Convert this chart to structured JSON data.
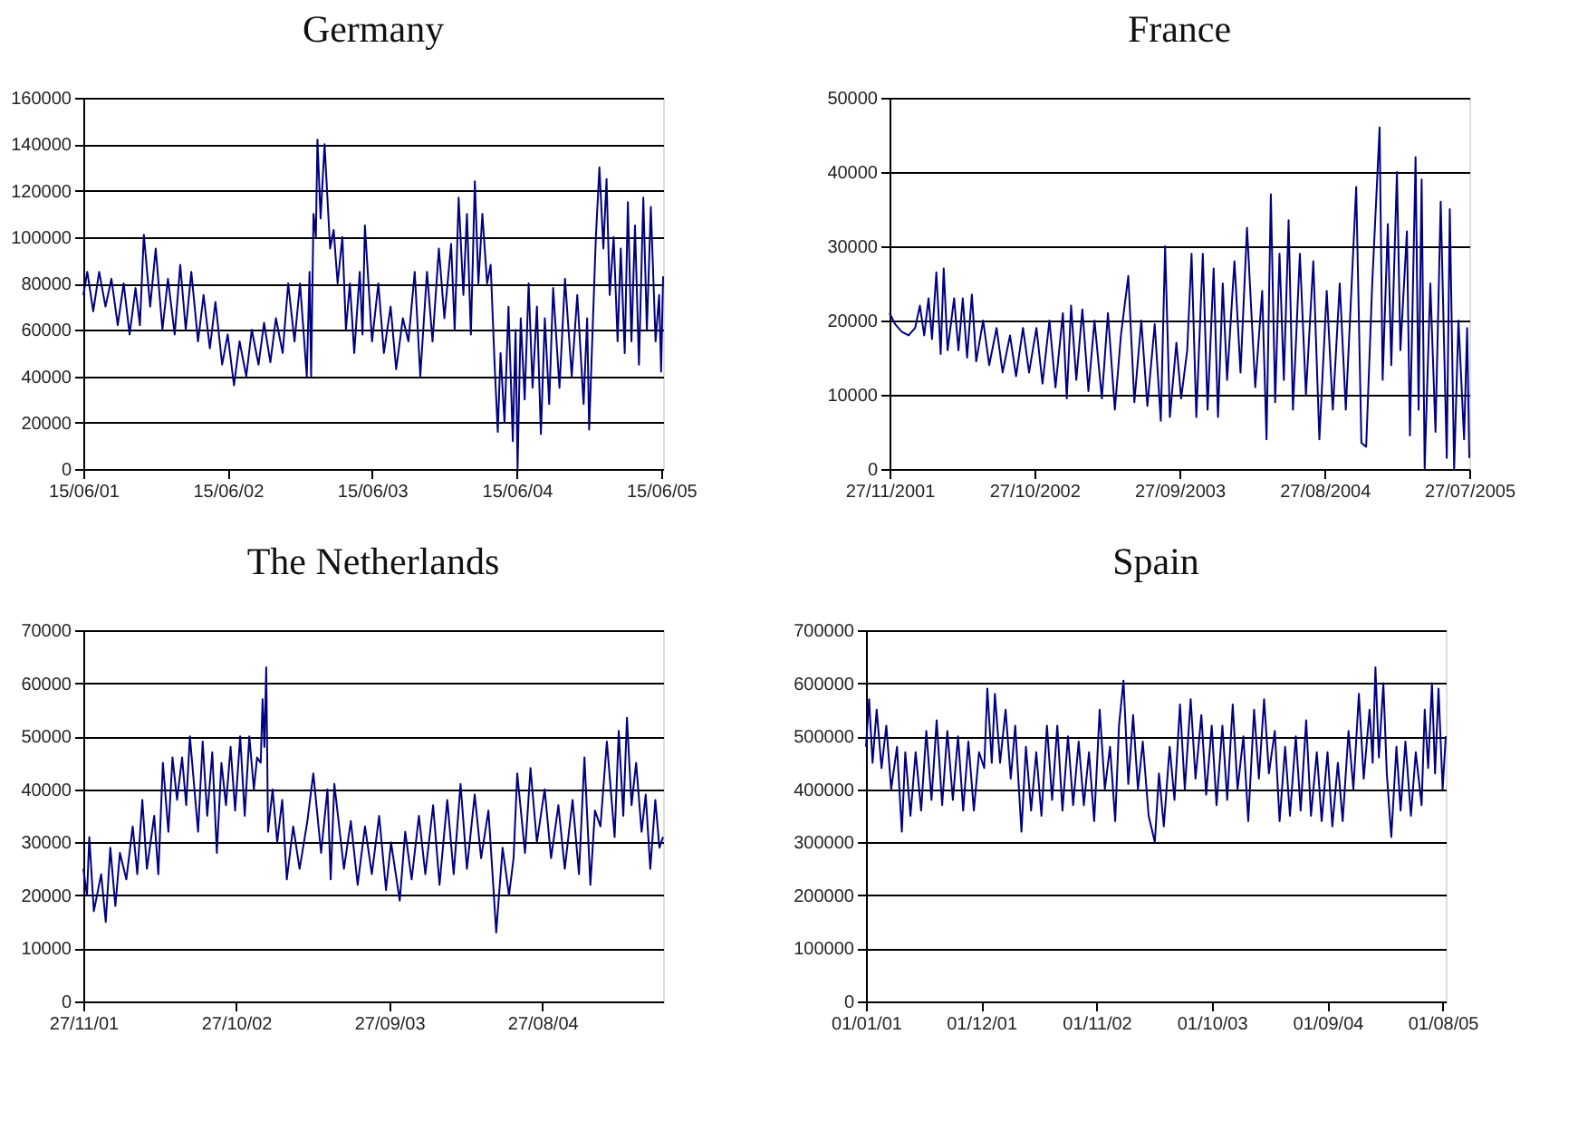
{
  "chart_data": [
    {
      "type": "line",
      "title": "Germany",
      "xlim": [
        "2001-06-15",
        "2005-06-20"
      ],
      "ylim": [
        0,
        160000
      ],
      "yticks": [
        0,
        20000,
        40000,
        60000,
        80000,
        100000,
        120000,
        140000,
        160000
      ],
      "grid": "y",
      "xticks": [
        {
          "value": "2001-06-15",
          "label": "15/06/01"
        },
        {
          "value": "2002-06-15",
          "label": "15/06/02"
        },
        {
          "value": "2003-06-15",
          "label": "15/06/03"
        },
        {
          "value": "2004-06-15",
          "label": "15/06/04"
        },
        {
          "value": "2005-06-15",
          "label": "15/06/05"
        }
      ],
      "x": [
        "2001-06-15",
        "2001-06-25",
        "2001-07-10",
        "2001-07-25",
        "2001-08-10",
        "2001-08-25",
        "2001-09-10",
        "2001-09-25",
        "2001-10-10",
        "2001-10-25",
        "2001-11-05",
        "2001-11-15",
        "2001-12-01",
        "2001-12-15",
        "2002-01-01",
        "2002-01-15",
        "2002-02-01",
        "2002-02-15",
        "2002-03-01",
        "2002-03-15",
        "2002-04-01",
        "2002-04-15",
        "2002-05-01",
        "2002-05-15",
        "2002-06-01",
        "2002-06-15",
        "2002-07-01",
        "2002-07-15",
        "2002-08-01",
        "2002-08-15",
        "2002-09-01",
        "2002-09-15",
        "2002-10-01",
        "2002-10-15",
        "2002-11-01",
        "2002-11-15",
        "2002-12-01",
        "2002-12-15",
        "2003-01-01",
        "2003-01-08",
        "2003-01-12",
        "2003-01-18",
        "2003-01-24",
        "2003-01-28",
        "2003-02-05",
        "2003-02-15",
        "2003-03-01",
        "2003-03-10",
        "2003-03-20",
        "2003-04-01",
        "2003-04-10",
        "2003-04-20",
        "2003-05-01",
        "2003-05-15",
        "2003-05-22",
        "2003-05-28",
        "2003-06-15",
        "2003-07-01",
        "2003-07-15",
        "2003-08-01",
        "2003-08-15",
        "2003-09-01",
        "2003-09-15",
        "2003-10-01",
        "2003-10-15",
        "2003-11-01",
        "2003-11-15",
        "2003-12-01",
        "2003-12-15",
        "2004-01-01",
        "2004-01-10",
        "2004-01-20",
        "2004-02-01",
        "2004-02-10",
        "2004-02-20",
        "2004-03-01",
        "2004-03-10",
        "2004-03-20",
        "2004-04-01",
        "2004-04-10",
        "2004-04-20",
        "2004-04-28",
        "2004-05-05",
        "2004-05-15",
        "2004-05-25",
        "2004-06-05",
        "2004-06-12",
        "2004-06-17",
        "2004-06-25",
        "2004-07-05",
        "2004-07-15",
        "2004-07-25",
        "2004-08-05",
        "2004-08-15",
        "2004-08-25",
        "2004-09-05",
        "2004-09-15",
        "2004-10-01",
        "2004-10-15",
        "2004-11-01",
        "2004-11-15",
        "2004-12-01",
        "2004-12-10",
        "2004-12-15",
        "2005-01-01",
        "2005-01-10",
        "2005-01-20",
        "2005-01-28",
        "2005-02-05",
        "2005-02-15",
        "2005-02-25",
        "2005-03-05",
        "2005-03-15",
        "2005-03-23",
        "2005-04-01",
        "2005-04-10",
        "2005-04-20",
        "2005-05-01",
        "2005-05-10",
        "2005-05-20",
        "2005-06-01",
        "2005-06-10",
        "2005-06-15",
        "2005-06-20"
      ],
      "series": [
        {
          "color": "#000080",
          "values": [
            75000,
            85000,
            68000,
            85000,
            70000,
            82000,
            62000,
            80000,
            58000,
            78000,
            62000,
            101000,
            70000,
            95000,
            60000,
            82000,
            58000,
            88000,
            60000,
            85000,
            55000,
            75000,
            52000,
            72000,
            45000,
            58000,
            36000,
            55000,
            40000,
            60000,
            45000,
            63000,
            46000,
            65000,
            50000,
            80000,
            55000,
            80000,
            40000,
            85000,
            40000,
            110000,
            100000,
            142000,
            108000,
            140000,
            95000,
            103000,
            80000,
            100000,
            60000,
            80000,
            50000,
            85000,
            58000,
            105000,
            55000,
            80000,
            50000,
            70000,
            43000,
            65000,
            55000,
            85000,
            40000,
            85000,
            55000,
            95000,
            65000,
            97000,
            60000,
            117000,
            75000,
            110000,
            58000,
            124000,
            80000,
            110000,
            80000,
            88000,
            45000,
            16000,
            50000,
            20000,
            70000,
            12000,
            60000,
            0,
            65000,
            30000,
            80000,
            35000,
            70000,
            15000,
            65000,
            28000,
            78000,
            35000,
            82000,
            40000,
            75000,
            28000,
            65000,
            17000,
            100000,
            130000,
            95000,
            125000,
            75000,
            100000,
            55000,
            95000,
            50000,
            115000,
            55000,
            105000,
            45000,
            117000,
            60000,
            113000,
            55000,
            75000,
            42000,
            83000
          ]
        }
      ]
    },
    {
      "type": "line",
      "title": "France",
      "xlim": [
        "2001-11-27",
        "2005-07-27"
      ],
      "ylim": [
        0,
        50000
      ],
      "yticks": [
        0,
        10000,
        20000,
        30000,
        40000,
        50000
      ],
      "grid": "y",
      "xticks": [
        {
          "value": "2001-11-27",
          "label": "27/11/2001"
        },
        {
          "value": "2002-10-27",
          "label": "27/10/2002"
        },
        {
          "value": "2003-09-27",
          "label": "27/09/2003"
        },
        {
          "value": "2004-08-27",
          "label": "27/08/2004"
        },
        {
          "value": "2005-07-27",
          "label": "27/07/2005"
        }
      ],
      "x": [
        "2001-11-27",
        "2001-12-10",
        "2001-12-25",
        "2002-01-10",
        "2002-01-25",
        "2002-02-05",
        "2002-02-15",
        "2002-02-25",
        "2002-03-05",
        "2002-03-15",
        "2002-03-25",
        "2002-04-01",
        "2002-04-10",
        "2002-04-25",
        "2002-05-05",
        "2002-05-15",
        "2002-05-25",
        "2002-06-05",
        "2002-06-15",
        "2002-07-01",
        "2002-07-15",
        "2002-08-01",
        "2002-08-15",
        "2002-09-01",
        "2002-09-15",
        "2002-10-01",
        "2002-10-15",
        "2002-11-01",
        "2002-11-15",
        "2002-12-01",
        "2002-12-15",
        "2003-01-01",
        "2003-01-10",
        "2003-01-20",
        "2003-02-01",
        "2003-02-15",
        "2003-03-01",
        "2003-03-15",
        "2003-04-01",
        "2003-04-15",
        "2003-05-01",
        "2003-05-15",
        "2003-06-01",
        "2003-06-15",
        "2003-07-01",
        "2003-07-15",
        "2003-08-01",
        "2003-08-15",
        "2003-08-25",
        "2003-09-05",
        "2003-09-20",
        "2003-10-01",
        "2003-10-15",
        "2003-10-25",
        "2003-11-05",
        "2003-11-20",
        "2003-12-01",
        "2003-12-15",
        "2003-12-25",
        "2004-01-05",
        "2004-01-15",
        "2004-02-01",
        "2004-02-15",
        "2004-03-01",
        "2004-03-20",
        "2004-04-05",
        "2004-04-15",
        "2004-04-25",
        "2004-05-05",
        "2004-05-15",
        "2004-05-25",
        "2004-06-05",
        "2004-06-15",
        "2004-07-01",
        "2004-07-15",
        "2004-08-01",
        "2004-08-15",
        "2004-09-01",
        "2004-09-15",
        "2004-10-01",
        "2004-10-15",
        "2004-11-08",
        "2004-11-20",
        "2004-12-01",
        "2004-12-15",
        "2005-01-01",
        "2005-01-08",
        "2005-01-20",
        "2005-01-28",
        "2005-02-10",
        "2005-02-18",
        "2005-03-05",
        "2005-03-12",
        "2005-03-25",
        "2005-04-01",
        "2005-04-08",
        "2005-04-15",
        "2005-04-28",
        "2005-05-10",
        "2005-05-22",
        "2005-06-05",
        "2005-06-12",
        "2005-06-22",
        "2005-07-02",
        "2005-07-15",
        "2005-07-22",
        "2005-07-27"
      ],
      "series": [
        {
          "color": "#000080",
          "values": [
            21000,
            19500,
            18500,
            18000,
            19000,
            22000,
            18000,
            23000,
            17500,
            26500,
            15500,
            27000,
            16000,
            23000,
            16000,
            23000,
            15000,
            23500,
            14500,
            20000,
            14000,
            19000,
            13000,
            18000,
            12500,
            19000,
            13000,
            19000,
            11500,
            20000,
            11000,
            21000,
            9500,
            22000,
            12000,
            21500,
            10500,
            20000,
            9500,
            21000,
            8000,
            18000,
            26000,
            9000,
            20000,
            8500,
            19500,
            6500,
            30000,
            7000,
            17000,
            9500,
            16000,
            29000,
            7000,
            29000,
            8000,
            27000,
            7000,
            25000,
            12000,
            28000,
            13000,
            32500,
            11000,
            24000,
            4000,
            37000,
            9000,
            29000,
            12000,
            33500,
            8000,
            29000,
            10000,
            28000,
            4000,
            24000,
            8000,
            25000,
            8000,
            38000,
            3500,
            3000,
            25000,
            46000,
            12000,
            33000,
            14000,
            40000,
            16000,
            32000,
            4500,
            42000,
            8000,
            39000,
            0,
            25000,
            5000,
            36000,
            1500,
            35000,
            0,
            20000,
            4000,
            19000,
            1500
          ]
        }
      ]
    },
    {
      "type": "line",
      "title": "The Netherlands",
      "xlim": [
        "2001-11-27",
        "2005-05-18"
      ],
      "ylim": [
        0,
        70000
      ],
      "yticks": [
        0,
        10000,
        20000,
        30000,
        40000,
        50000,
        60000,
        70000
      ],
      "grid": "y",
      "xticks": [
        {
          "value": "2001-11-27",
          "label": "27/11/01"
        },
        {
          "value": "2002-10-27",
          "label": "27/10/02"
        },
        {
          "value": "2003-09-27",
          "label": "27/09/03"
        },
        {
          "value": "2004-08-27",
          "label": "27/08/04"
        }
      ],
      "x": [
        "2001-11-27",
        "2001-12-05",
        "2001-12-10",
        "2001-12-20",
        "2002-01-05",
        "2002-01-15",
        "2002-01-25",
        "2002-02-05",
        "2002-02-15",
        "2002-03-01",
        "2002-03-15",
        "2002-03-25",
        "2002-04-05",
        "2002-04-15",
        "2002-05-01",
        "2002-05-10",
        "2002-05-20",
        "2002-06-01",
        "2002-06-10",
        "2002-06-20",
        "2002-07-01",
        "2002-07-10",
        "2002-07-18",
        "2002-08-05",
        "2002-08-15",
        "2002-08-25",
        "2002-09-05",
        "2002-09-15",
        "2002-09-25",
        "2002-10-05",
        "2002-10-15",
        "2002-10-25",
        "2002-11-05",
        "2002-11-15",
        "2002-11-25",
        "2002-12-05",
        "2002-12-12",
        "2002-12-20",
        "2002-12-24",
        "2002-12-28",
        "2003-01-01",
        "2003-01-05",
        "2003-01-15",
        "2003-01-25",
        "2003-02-05",
        "2003-02-15",
        "2003-03-01",
        "2003-03-15",
        "2003-04-01",
        "2003-04-14",
        "2003-05-01",
        "2003-05-15",
        "2003-05-22",
        "2003-05-30",
        "2003-06-20",
        "2003-07-05",
        "2003-07-20",
        "2003-08-05",
        "2003-08-20",
        "2003-09-05",
        "2003-09-20",
        "2003-10-01",
        "2003-10-20",
        "2003-11-01",
        "2003-11-15",
        "2003-12-01",
        "2003-12-15",
        "2004-01-01",
        "2004-01-15",
        "2004-02-01",
        "2004-02-15",
        "2004-03-01",
        "2004-03-15",
        "2004-04-01",
        "2004-04-15",
        "2004-05-01",
        "2004-05-10",
        "2004-05-18",
        "2004-06-01",
        "2004-06-15",
        "2004-06-25",
        "2004-07-03",
        "2004-07-20",
        "2004-08-01",
        "2004-08-15",
        "2004-09-01",
        "2004-09-15",
        "2004-10-01",
        "2004-10-15",
        "2004-11-01",
        "2004-11-15",
        "2004-11-27",
        "2004-12-10",
        "2004-12-20",
        "2005-01-01",
        "2005-01-15",
        "2005-02-01",
        "2005-02-10",
        "2005-02-20",
        "2005-02-28",
        "2005-03-10",
        "2005-03-20",
        "2005-04-01",
        "2005-04-10",
        "2005-04-20",
        "2005-05-01",
        "2005-05-10",
        "2005-05-18"
      ],
      "series": [
        {
          "color": "#000080",
          "values": [
            25000,
            20000,
            31000,
            17000,
            24000,
            15000,
            29000,
            18000,
            28000,
            23000,
            33000,
            24000,
            38000,
            25000,
            35000,
            24000,
            45000,
            32000,
            46000,
            38000,
            46000,
            37000,
            50000,
            32000,
            49000,
            35000,
            47000,
            28000,
            45000,
            37000,
            48000,
            36000,
            50000,
            35000,
            50000,
            40000,
            46000,
            45000,
            57000,
            48000,
            63000,
            32000,
            40000,
            30000,
            38000,
            23000,
            33000,
            25000,
            34000,
            43000,
            28000,
            40000,
            23000,
            41000,
            25000,
            34000,
            22000,
            33000,
            24000,
            35000,
            21000,
            30000,
            19000,
            32000,
            23000,
            35000,
            24000,
            37000,
            22000,
            38000,
            24000,
            41000,
            25000,
            39000,
            27000,
            36000,
            24000,
            13000,
            29000,
            20000,
            27000,
            43000,
            28000,
            44000,
            30000,
            40000,
            27000,
            37000,
            25000,
            38000,
            24000,
            46000,
            22000,
            36000,
            33000,
            49000,
            31000,
            51000,
            35000,
            53500,
            37000,
            45000,
            32000,
            39000,
            25000,
            38000,
            29000,
            31000
          ]
        }
      ]
    },
    {
      "type": "line",
      "title": "Spain",
      "xlim": [
        "2001-01-01",
        "2005-08-10"
      ],
      "ylim": [
        0,
        700000
      ],
      "yticks": [
        0,
        100000,
        200000,
        300000,
        400000,
        500000,
        600000,
        700000
      ],
      "grid": "y",
      "xticks": [
        {
          "value": "2001-01-01",
          "label": "01/01/01"
        },
        {
          "value": "2001-12-01",
          "label": "01/12/01"
        },
        {
          "value": "2002-11-01",
          "label": "01/11/02"
        },
        {
          "value": "2003-10-01",
          "label": "01/10/03"
        },
        {
          "value": "2004-09-01",
          "label": "01/09/04"
        },
        {
          "value": "2005-08-01",
          "label": "01/08/05"
        }
      ],
      "x": [
        "2001-01-01",
        "2001-01-10",
        "2001-01-20",
        "2001-02-01",
        "2001-02-15",
        "2001-03-01",
        "2001-03-15",
        "2001-04-01",
        "2001-04-15",
        "2001-04-25",
        "2001-05-10",
        "2001-05-25",
        "2001-06-10",
        "2001-06-25",
        "2001-07-10",
        "2001-07-25",
        "2001-08-10",
        "2001-08-25",
        "2001-09-10",
        "2001-09-25",
        "2001-10-10",
        "2001-10-25",
        "2001-11-10",
        "2001-11-25",
        "2001-12-10",
        "2001-12-19",
        "2002-01-01",
        "2002-01-10",
        "2002-01-25",
        "2002-02-10",
        "2002-02-25",
        "2002-03-10",
        "2002-03-28",
        "2002-04-10",
        "2002-04-25",
        "2002-05-10",
        "2002-05-25",
        "2002-06-10",
        "2002-06-25",
        "2002-07-10",
        "2002-07-25",
        "2002-08-10",
        "2002-08-25",
        "2002-09-10",
        "2002-09-25",
        "2002-10-10",
        "2002-10-25",
        "2002-11-10",
        "2002-11-25",
        "2002-12-10",
        "2002-12-25",
        "2003-01-05",
        "2003-01-18",
        "2003-02-01",
        "2003-02-15",
        "2003-03-01",
        "2003-03-15",
        "2003-04-01",
        "2003-04-19",
        "2003-05-01",
        "2003-05-15",
        "2003-06-01",
        "2003-06-15",
        "2003-07-01",
        "2003-07-15",
        "2003-08-01",
        "2003-08-15",
        "2003-09-01",
        "2003-09-15",
        "2003-10-01",
        "2003-10-15",
        "2003-11-01",
        "2003-11-15",
        "2003-12-01",
        "2003-12-15",
        "2004-01-01",
        "2004-01-15",
        "2004-02-01",
        "2004-02-15",
        "2004-03-01",
        "2004-03-15",
        "2004-04-01",
        "2004-04-15",
        "2004-05-01",
        "2004-05-15",
        "2004-06-01",
        "2004-06-15",
        "2004-07-01",
        "2004-07-15",
        "2004-08-01",
        "2004-08-15",
        "2004-09-01",
        "2004-09-15",
        "2004-10-01",
        "2004-10-15",
        "2004-11-01",
        "2004-11-15",
        "2004-12-01",
        "2004-12-15",
        "2005-01-01",
        "2005-01-10",
        "2005-01-18",
        "2005-01-28",
        "2005-02-10",
        "2005-02-20",
        "2005-03-05",
        "2005-03-20",
        "2005-04-01",
        "2005-04-15",
        "2005-05-01",
        "2005-05-15",
        "2005-06-01",
        "2005-06-10",
        "2005-06-20",
        "2005-07-01",
        "2005-07-10",
        "2005-07-20",
        "2005-08-01",
        "2005-08-10"
      ],
      "series": [
        {
          "color": "#000080",
          "values": [
            480000,
            570000,
            450000,
            550000,
            440000,
            520000,
            400000,
            480000,
            320000,
            470000,
            350000,
            470000,
            360000,
            510000,
            380000,
            530000,
            370000,
            510000,
            380000,
            500000,
            360000,
            490000,
            360000,
            470000,
            440000,
            590000,
            450000,
            580000,
            450000,
            550000,
            420000,
            520000,
            320000,
            480000,
            360000,
            470000,
            350000,
            520000,
            380000,
            520000,
            360000,
            500000,
            370000,
            490000,
            370000,
            470000,
            340000,
            550000,
            400000,
            480000,
            340000,
            520000,
            605000,
            410000,
            540000,
            400000,
            490000,
            350000,
            300000,
            430000,
            330000,
            480000,
            380000,
            560000,
            400000,
            570000,
            420000,
            540000,
            390000,
            520000,
            370000,
            520000,
            380000,
            560000,
            400000,
            500000,
            340000,
            550000,
            420000,
            570000,
            430000,
            510000,
            340000,
            480000,
            350000,
            500000,
            360000,
            530000,
            350000,
            470000,
            340000,
            470000,
            330000,
            450000,
            340000,
            510000,
            400000,
            580000,
            420000,
            550000,
            450000,
            630000,
            460000,
            600000,
            430000,
            310000,
            480000,
            360000,
            490000,
            350000,
            470000,
            370000,
            550000,
            440000,
            600000,
            430000,
            590000,
            400000,
            500000
          ]
        }
      ]
    }
  ]
}
